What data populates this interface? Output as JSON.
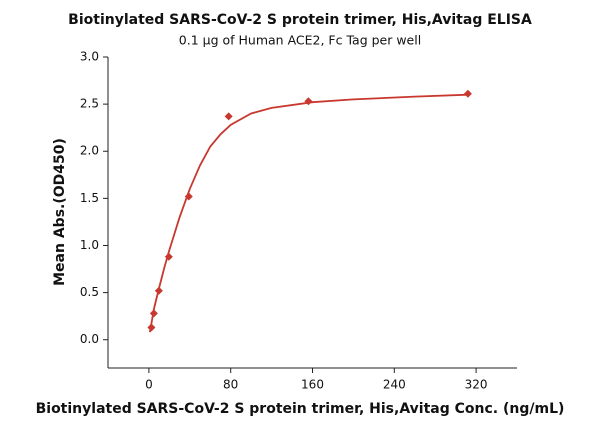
{
  "chart_data": {
    "type": "scatter",
    "title": "Biotinylated SARS-CoV-2 S protein trimer, His,Avitag ELISA",
    "subtitle": "0.1 µg of Human ACE2, Fc Tag per well",
    "x_label": "Biotinylated SARS-CoV-2 S protein trimer, His,Avitag Conc. (ng/mL)",
    "y_label": "Mean Abs.(OD450)",
    "xlim": [
      -40,
      360
    ],
    "xticks": [
      0,
      80,
      160,
      240,
      320
    ],
    "ylim": [
      -0.3,
      3.0
    ],
    "yticks": [
      {
        "value": 0,
        "label": "0.0"
      },
      0.5,
      {
        "value": 1,
        "label": "1.0"
      },
      1.5,
      {
        "value": 2,
        "label": "2.0"
      },
      2.5,
      {
        "value": 3,
        "label": "3.0"
      }
    ],
    "series": [
      {
        "color": "#c8382e",
        "marker": "diamond",
        "x": [
          2.44,
          4.88,
          9.75,
          19.5,
          39,
          78,
          156,
          312
        ],
        "values": [
          0.13,
          0.28,
          0.52,
          0.88,
          1.52,
          2.37,
          2.53,
          2.61
        ]
      },
      {
        "color": "#c8382e",
        "marker": "line",
        "x": [
          1,
          5,
          10,
          15,
          20,
          30,
          40,
          50,
          60,
          70,
          80,
          100,
          120,
          160,
          200,
          260,
          312
        ],
        "values": [
          0.08,
          0.33,
          0.55,
          0.76,
          0.95,
          1.3,
          1.6,
          1.85,
          2.05,
          2.18,
          2.28,
          2.4,
          2.46,
          2.52,
          2.55,
          2.58,
          2.6
        ]
      }
    ]
  }
}
